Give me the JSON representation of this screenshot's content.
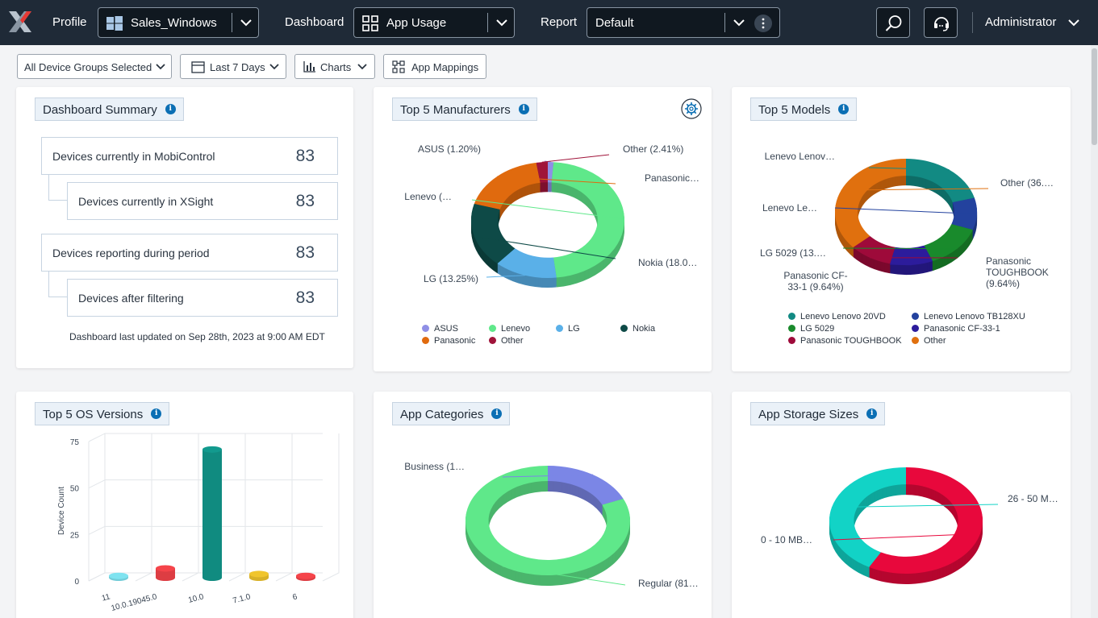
{
  "topbar": {
    "profile_label": "Profile",
    "profile_value": "Sales_Windows",
    "dashboard_label": "Dashboard",
    "dashboard_value": "App Usage",
    "report_label": "Report",
    "report_value": "Default",
    "user_name": "Administrator"
  },
  "filters": {
    "device_groups": "All Device Groups Selected",
    "date_range": "Last 7 Days",
    "charts": "Charts",
    "app_mappings": "App Mappings"
  },
  "summary": {
    "title": "Dashboard Summary",
    "rows": [
      {
        "label": "Devices currently in MobiControl",
        "value": "83"
      },
      {
        "label": "Devices currently in XSight",
        "value": "83"
      },
      {
        "label": "Devices reporting during period",
        "value": "83"
      },
      {
        "label": "Devices after filtering",
        "value": "83"
      }
    ],
    "last_updated": "Dashboard last updated on Sep 28th, 2023 at 9:00 AM EDT"
  },
  "cards": {
    "manufacturers_title": "Top 5 Manufacturers",
    "models_title": "Top 5 Models",
    "os_title": "Top 5 OS Versions",
    "app_categories_title": "App Categories",
    "storage_title": "App Storage Sizes"
  },
  "chart_data": [
    {
      "type": "pie",
      "title": "Top 5 Manufacturers",
      "labels": [
        "ASUS",
        "Lenevo",
        "LG",
        "Nokia",
        "Panasonic",
        "Other"
      ],
      "values": [
        1.2,
        46.99,
        13.25,
        18.07,
        18.08,
        2.41
      ],
      "slice_labels": [
        "ASUS (1.20%)",
        "Lenevo (…",
        "LG (13.25%)",
        "Nokia (18.0…",
        "Panasonic…",
        "Other (2.41%)"
      ],
      "colors": [
        "#8f8fe6",
        "#5fe88a",
        "#5ab0e8",
        "#0e4a47",
        "#e06a0e",
        "#a0143a"
      ],
      "legend": "bottom"
    },
    {
      "type": "pie",
      "title": "Top 5 Models",
      "labels": [
        "Lenevo Lenovo 20VD",
        "Lenevo Lenovo TB128XU",
        "LG 5029",
        "Panasonic CF-33-1",
        "Panasonic TOUGHBOOK",
        "Other"
      ],
      "values": [
        20.5,
        9.6,
        13.25,
        9.64,
        9.64,
        36.2
      ],
      "slice_labels": [
        "Lenevo Lenov…",
        "Lenevo Le…",
        "LG 5029 (13.…",
        "Panasonic CF-33-1 (9.64%)",
        "Panasonic TOUGHBOOK (9.64%)",
        "Other (36.…"
      ],
      "colors": [
        "#128a83",
        "#23429e",
        "#198a2c",
        "#2c1c9c",
        "#9e0a3a",
        "#e0700e"
      ],
      "legend": "bottom"
    },
    {
      "type": "bar",
      "title": "Top 5 OS Versions",
      "categories": [
        "11",
        "10.0.19045.0",
        "10.0",
        "7.1.0",
        "6"
      ],
      "values": [
        1,
        5,
        69,
        2,
        1
      ],
      "colors": [
        "#7fe3f0",
        "#f5444a",
        "#129a8e",
        "#f0c52c",
        "#f5444a"
      ],
      "ylabel": "Device Count",
      "yticks": [
        0,
        25,
        50,
        75
      ],
      "ylim": [
        0,
        75
      ]
    },
    {
      "type": "pie",
      "title": "App Categories",
      "labels": [
        "Business",
        "Regular"
      ],
      "values": [
        18.5,
        81.5
      ],
      "slice_labels": [
        "Business (1…",
        "Regular (81…"
      ],
      "colors": [
        "#7b86e6",
        "#5fe88a"
      ]
    },
    {
      "type": "pie",
      "title": "App Storage Sizes",
      "labels": [
        "0 - 10 MB",
        "26 - 50 MB"
      ],
      "values": [
        58,
        42
      ],
      "slice_labels": [
        "0 - 10 MB…",
        "26 - 50 M…"
      ],
      "colors": [
        "#e8083c",
        "#12d3c6"
      ]
    }
  ]
}
